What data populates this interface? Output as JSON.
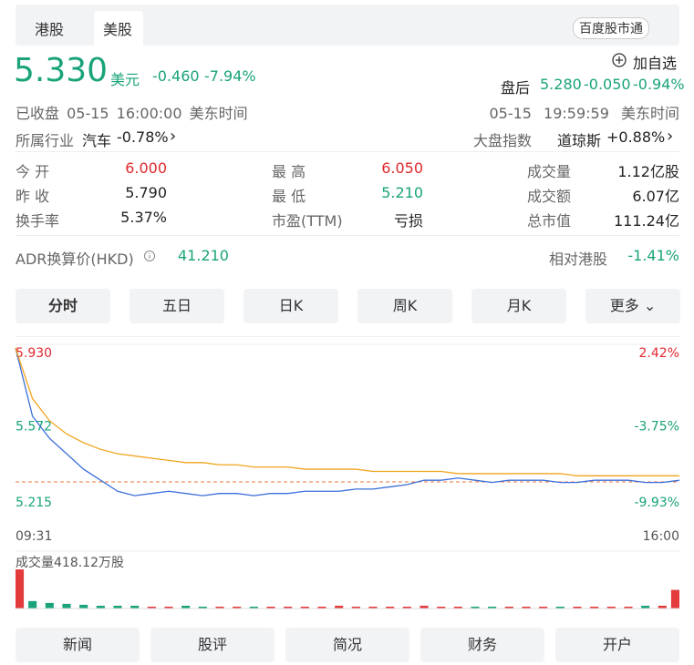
{
  "tabs": [
    "港股",
    "美股"
  ],
  "service_button": "百度股市通",
  "quote": {
    "price": "5.330",
    "currency": "美元",
    "change": "-0.460",
    "change_pct": "-7.94%",
    "watch": "加自选"
  },
  "after_hours": {
    "label": "盘后",
    "price": "5.280",
    "change": "-0.050",
    "change_pct": "-0.94%"
  },
  "status": {
    "left": "已收盘 05-15 16:00:00 美东时间",
    "right": "05-15 19:59:59 美东时间"
  },
  "industry": {
    "label": "所属行业",
    "name": "汽车",
    "change": "-0.78%"
  },
  "index": {
    "label": "大盘指数",
    "name": "道琼斯",
    "change": "+0.88%"
  },
  "stats": [
    [
      [
        "今 开",
        "6.000"
      ],
      [
        "最 高",
        "6.050"
      ],
      [
        "成交量",
        "1.12亿股"
      ]
    ],
    [
      [
        "昨 收",
        "5.790"
      ],
      [
        "最 低",
        "5.210"
      ],
      [
        "成交额",
        "6.07亿"
      ]
    ],
    [
      [
        "换手率",
        "5.37%"
      ],
      [
        "市盈(TTM)",
        "亏损"
      ],
      [
        "总市值",
        "111.24亿"
      ]
    ]
  ],
  "adr": {
    "label": "ADR换算价(HKD)",
    "value": "41.210",
    "rel_label": "相对港股",
    "rel_value": "-1.41%"
  },
  "periods": [
    "分时",
    "五日",
    "日K",
    "周K",
    "月K",
    "更多"
  ],
  "chart_data": {
    "type": "line",
    "ylim": [
      5.215,
      5.93
    ],
    "yticks": [
      {
        "value": 5.93,
        "label": "5.930"
      },
      5.572,
      5.215
    ],
    "y2lim": [
      -9.93,
      2.42
    ],
    "y2ticks": [
      {
        "value": 2.42,
        "label": "2.42%"
      },
      {
        "value": -3.75,
        "label": "-3.75%"
      },
      {
        "value": -9.93,
        "label": "-9.93%"
      }
    ],
    "x_start": "09:31",
    "x_end": "16:00",
    "series": [
      {
        "color": "#3b6fd9",
        "values": [
          5.93,
          5.62,
          5.52,
          5.45,
          5.38,
          5.33,
          5.28,
          5.26,
          5.27,
          5.28,
          5.27,
          5.26,
          5.27,
          5.27,
          5.26,
          5.27,
          5.27,
          5.28,
          5.28,
          5.28,
          5.29,
          5.29,
          5.3,
          5.31,
          5.33,
          5.33,
          5.34,
          5.33,
          5.32,
          5.33,
          5.33,
          5.33,
          5.32,
          5.32,
          5.33,
          5.33,
          5.33,
          5.32,
          5.32,
          5.33
        ]
      },
      {
        "color": "#f0a41e",
        "values": [
          5.93,
          5.7,
          5.6,
          5.54,
          5.5,
          5.47,
          5.45,
          5.44,
          5.43,
          5.42,
          5.41,
          5.41,
          5.4,
          5.4,
          5.39,
          5.39,
          5.39,
          5.38,
          5.38,
          5.38,
          5.38,
          5.37,
          5.37,
          5.37,
          5.37,
          5.37,
          5.36,
          5.36,
          5.36,
          5.36,
          5.36,
          5.36,
          5.36,
          5.35,
          5.35,
          5.35,
          5.35,
          5.35,
          5.35,
          5.35
        ]
      }
    ],
    "volume_label": "成交量418.12万股",
    "volume_ylim": [
      0,
      45
    ],
    "volume": [
      42,
      8,
      6,
      5,
      4,
      3,
      3,
      3,
      2,
      2,
      3,
      2,
      2,
      2,
      2,
      2,
      2,
      2,
      2,
      3,
      2,
      2,
      2,
      2,
      3,
      2,
      2,
      2,
      2,
      2,
      2,
      2,
      2,
      2,
      2,
      2,
      2,
      3,
      3,
      20
    ],
    "up_color": "#e33b3b",
    "down_color": "#1aa37a"
  },
  "footer": [
    "新闻",
    "股评",
    "简况",
    "财务",
    "开户"
  ]
}
